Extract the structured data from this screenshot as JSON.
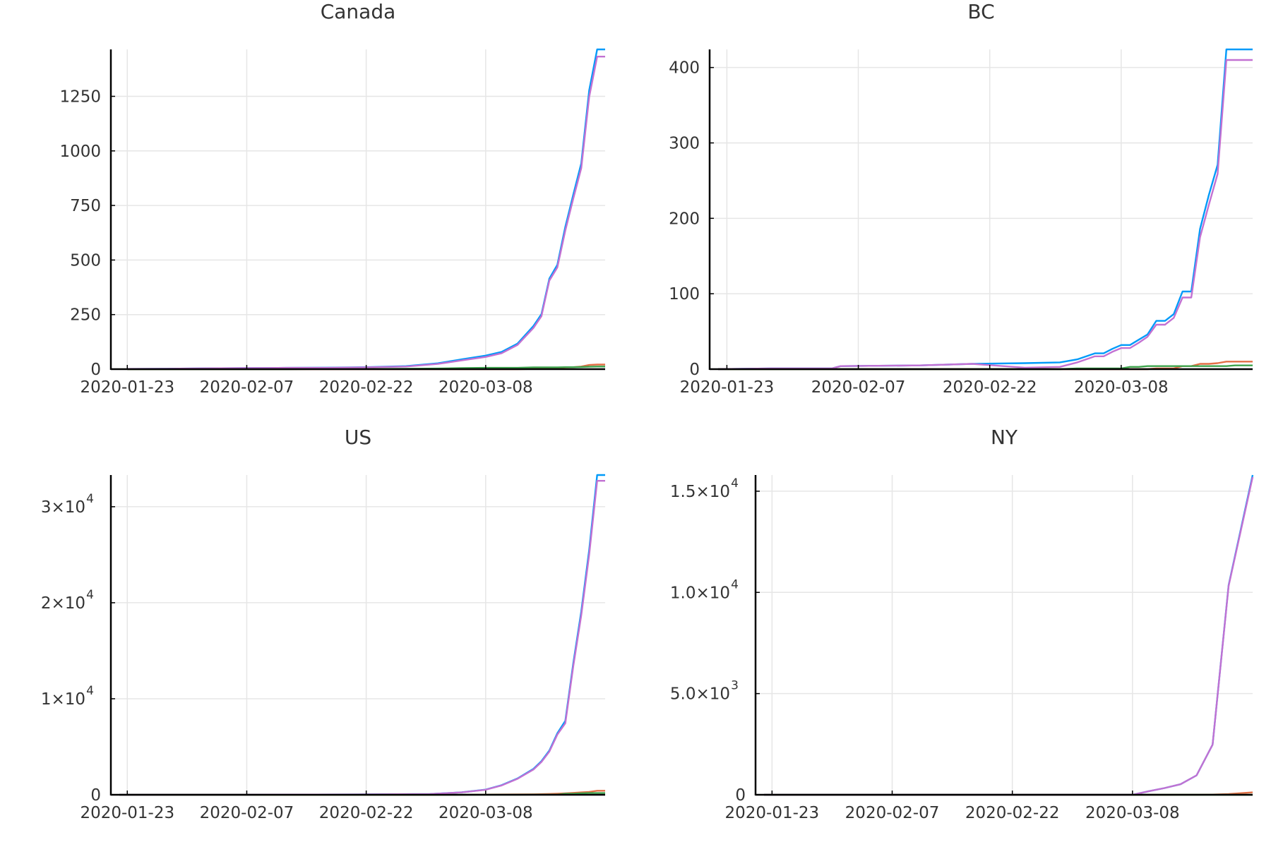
{
  "colors": {
    "series_1": "#009af9",
    "series_2": "#e26f46",
    "series_3": "#3da44d",
    "series_4": "#c271d2"
  },
  "chart_data": [
    {
      "type": "line",
      "title": "Canada",
      "x": [
        "2020-01-23",
        "2020-01-28",
        "2020-02-02",
        "2020-02-07",
        "2020-02-12",
        "2020-02-17",
        "2020-02-22",
        "2020-02-27",
        "2020-03-02",
        "2020-03-05",
        "2020-03-08",
        "2020-03-10",
        "2020-03-12",
        "2020-03-14",
        "2020-03-15",
        "2020-03-16",
        "2020-03-17",
        "2020-03-18",
        "2020-03-19",
        "2020-03-20",
        "2020-03-21",
        "2020-03-22",
        "2020-03-23"
      ],
      "x_ticks": [
        "2020-01-23",
        "2020-02-07",
        "2020-02-22",
        "2020-03-08"
      ],
      "xlim": [
        "2020-01-22",
        "2020-03-23"
      ],
      "ylim": [
        0,
        1465
      ],
      "y_ticks": [
        {
          "value": 0,
          "label": "0"
        },
        {
          "value": 250,
          "label": "250"
        },
        {
          "value": 500,
          "label": "500"
        },
        {
          "value": 750,
          "label": "750"
        },
        {
          "value": 1000,
          "label": "1000"
        },
        {
          "value": 1250,
          "label": "1250"
        }
      ],
      "grid": true,
      "series": [
        {
          "color": "#009af9",
          "values": [
            1,
            2,
            4,
            5,
            6,
            7,
            9,
            14,
            27,
            45,
            62,
            79,
            117,
            198,
            252,
            415,
            478,
            652,
            800,
            943,
            1277,
            1465,
            1465
          ]
        },
        {
          "color": "#e26f46",
          "values": [
            0,
            0,
            0,
            0,
            0,
            0,
            0,
            0,
            0,
            0,
            0,
            0,
            0,
            1,
            1,
            1,
            4,
            8,
            9,
            12,
            19,
            21,
            21
          ]
        },
        {
          "color": "#3da44d",
          "values": [
            0,
            0,
            0,
            0,
            0,
            1,
            1,
            2,
            3,
            5,
            6,
            6,
            6,
            8,
            8,
            8,
            8,
            9,
            9,
            10,
            11,
            12,
            12
          ]
        },
        {
          "color": "#c271d2",
          "values": [
            1,
            2,
            4,
            5,
            6,
            6,
            8,
            12,
            24,
            40,
            56,
            73,
            111,
            189,
            243,
            406,
            466,
            635,
            782,
            921,
            1247,
            1432,
            1432
          ]
        }
      ]
    },
    {
      "type": "line",
      "title": "BC",
      "x": [
        "2020-01-22",
        "2020-01-28",
        "2020-02-04",
        "2020-02-05",
        "2020-02-14",
        "2020-02-20",
        "2020-02-26",
        "2020-03-01",
        "2020-03-03",
        "2020-03-05",
        "2020-03-06",
        "2020-03-07",
        "2020-03-08",
        "2020-03-09",
        "2020-03-10",
        "2020-03-11",
        "2020-03-12",
        "2020-03-13",
        "2020-03-14",
        "2020-03-15",
        "2020-03-16",
        "2020-03-17",
        "2020-03-18",
        "2020-03-19",
        "2020-03-20",
        "2020-03-21",
        "2020-03-22",
        "2020-03-23"
      ],
      "x_ticks": [
        "2020-01-23",
        "2020-02-07",
        "2020-02-22",
        "2020-03-08"
      ],
      "xlim": [
        "2020-01-22",
        "2020-03-23"
      ],
      "ylim": [
        0,
        424
      ],
      "y_ticks": [
        {
          "value": 0,
          "label": "0"
        },
        {
          "value": 100,
          "label": "100"
        },
        {
          "value": 200,
          "label": "200"
        },
        {
          "value": 300,
          "label": "300"
        },
        {
          "value": 400,
          "label": "400"
        }
      ],
      "grid": true,
      "series": [
        {
          "color": "#009af9",
          "values": [
            0,
            1,
            1,
            4,
            5,
            7,
            8,
            9,
            13,
            21,
            21,
            27,
            32,
            32,
            39,
            46,
            64,
            64,
            73,
            103,
            103,
            186,
            231,
            271,
            424,
            424,
            424,
            424
          ]
        },
        {
          "color": "#e26f46",
          "values": [
            0,
            0,
            0,
            0,
            0,
            0,
            0,
            0,
            0,
            0,
            0,
            0,
            0,
            0,
            0,
            0,
            1,
            1,
            1,
            4,
            4,
            7,
            7,
            8,
            10,
            10,
            10,
            10
          ]
        },
        {
          "color": "#3da44d",
          "values": [
            0,
            0,
            0,
            0,
            0,
            0,
            0,
            0,
            1,
            1,
            1,
            1,
            1,
            3,
            3,
            4,
            4,
            4,
            4,
            4,
            4,
            4,
            4,
            4,
            4,
            5,
            5,
            5
          ]
        },
        {
          "color": "#c271d2",
          "values": [
            0,
            1,
            1,
            4,
            5,
            7,
            2,
            3,
            9,
            17,
            17,
            23,
            28,
            28,
            35,
            43,
            59,
            59,
            68,
            95,
            95,
            175,
            218,
            259,
            410,
            410,
            410,
            410
          ]
        }
      ]
    },
    {
      "type": "line",
      "title": "US",
      "x": [
        "2020-01-22",
        "2020-02-07",
        "2020-02-22",
        "2020-03-01",
        "2020-03-05",
        "2020-03-08",
        "2020-03-10",
        "2020-03-12",
        "2020-03-14",
        "2020-03-15",
        "2020-03-16",
        "2020-03-17",
        "2020-03-18",
        "2020-03-19",
        "2020-03-20",
        "2020-03-21",
        "2020-03-22",
        "2020-03-23"
      ],
      "x_ticks": [
        "2020-01-23",
        "2020-02-07",
        "2020-02-22",
        "2020-03-08"
      ],
      "xlim": [
        "2020-01-22",
        "2020-03-23"
      ],
      "ylim": [
        0,
        33300
      ],
      "y_ticks": [
        {
          "value": 0,
          "label": "0"
        },
        {
          "value": 10000,
          "mantissa": "1×10",
          "exponent": "4"
        },
        {
          "value": 20000,
          "mantissa": "2×10",
          "exponent": "4"
        },
        {
          "value": 30000,
          "mantissa": "3×10",
          "exponent": "4"
        }
      ],
      "grid": true,
      "series": [
        {
          "color": "#009af9",
          "values": [
            1,
            11,
            35,
            75,
            260,
            540,
            1000,
            1700,
            2700,
            3500,
            4600,
            6400,
            7700,
            13700,
            19100,
            25500,
            33300,
            33300
          ]
        },
        {
          "color": "#e26f46",
          "values": [
            0,
            0,
            0,
            1,
            10,
            20,
            30,
            40,
            55,
            65,
            85,
            110,
            150,
            200,
            250,
            300,
            420,
            420
          ]
        },
        {
          "color": "#3da44d",
          "values": [
            0,
            0,
            0,
            0,
            0,
            5,
            8,
            10,
            12,
            15,
            17,
            17,
            105,
            106,
            147,
            176,
            178,
            178
          ]
        },
        {
          "color": "#c271d2",
          "values": [
            1,
            11,
            35,
            75,
            250,
            520,
            970,
            1660,
            2630,
            3420,
            4500,
            6270,
            7450,
            13400,
            18700,
            25000,
            32700,
            32700
          ]
        }
      ]
    },
    {
      "type": "line",
      "title": "NY",
      "x": [
        "2020-01-22",
        "2020-03-01",
        "2020-03-03",
        "2020-03-08",
        "2020-03-10",
        "2020-03-12",
        "2020-03-14",
        "2020-03-16",
        "2020-03-18",
        "2020-03-20",
        "2020-03-23"
      ],
      "x_ticks": [
        "2020-01-23",
        "2020-02-07",
        "2020-02-22",
        "2020-03-08"
      ],
      "xlim": [
        "2020-01-22",
        "2020-03-23"
      ],
      "ylim": [
        0,
        15800
      ],
      "y_ticks": [
        {
          "value": 0,
          "label": "0"
        },
        {
          "value": 5000,
          "mantissa": "5.0×10",
          "exponent": "3"
        },
        {
          "value": 10000,
          "mantissa": "1.0×10",
          "exponent": "4"
        },
        {
          "value": 15000,
          "mantissa": "1.5×10",
          "exponent": "4"
        }
      ],
      "grid": true,
      "series": [
        {
          "color": "#009af9",
          "values": [
            0,
            0,
            0,
            0,
            170,
            330,
            520,
            960,
            2480,
            10360,
            15800
          ]
        },
        {
          "color": "#e26f46",
          "values": [
            0,
            0,
            0,
            0,
            0,
            0,
            2,
            5,
            10,
            35,
            117
          ]
        },
        {
          "color": "#3da44d",
          "values": [
            0,
            0,
            0,
            0,
            0,
            0,
            0,
            0,
            0,
            0,
            0
          ]
        },
        {
          "color": "#c271d2",
          "values": [
            0,
            0,
            0,
            0,
            170,
            330,
            520,
            960,
            2480,
            10320,
            15700
          ]
        }
      ]
    }
  ]
}
